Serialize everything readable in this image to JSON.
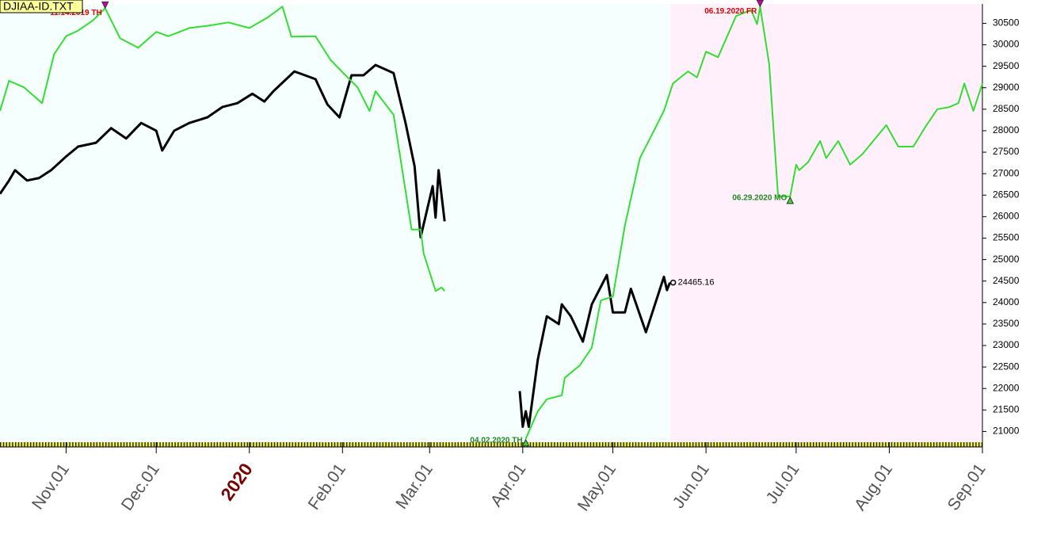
{
  "chart_data": {
    "type": "line",
    "title": "DJIAA-ID.TXT",
    "xlim": [
      "2019-10-10",
      "2020-09-01"
    ],
    "ylim": [
      20750,
      30950
    ],
    "yticks": [
      21000,
      21500,
      22000,
      22500,
      23000,
      23500,
      24000,
      24500,
      25000,
      25500,
      26000,
      26500,
      27000,
      27500,
      28000,
      28500,
      29000,
      29500,
      30000,
      30500
    ],
    "xticks": [
      {
        "value": "2019-11-01",
        "label": "Nov.01"
      },
      {
        "value": "2019-12-01",
        "label": "Dec.01"
      },
      {
        "value": "2020-01-01",
        "label": "2020"
      },
      {
        "value": "2020-02-01",
        "label": "Feb.01"
      },
      {
        "value": "2020-03-01",
        "label": "Mar.01"
      },
      {
        "value": "2020-04-01",
        "label": "Apr.01"
      },
      {
        "value": "2020-05-01",
        "label": "May.01"
      },
      {
        "value": "2020-06-01",
        "label": "Jun.01"
      },
      {
        "value": "2020-07-01",
        "label": "Jul.01"
      },
      {
        "value": "2020-08-01",
        "label": "Aug.01"
      },
      {
        "value": "2020-09-01",
        "label": "Sep.01"
      }
    ],
    "grid": false,
    "series": [
      {
        "color": "#000000",
        "x": [
          "2019-10-10",
          "2019-10-13",
          "2019-10-15",
          "2019-10-19",
          "2019-10-23",
          "2019-10-27",
          "2019-11-01",
          "2019-11-05",
          "2019-11-11",
          "2019-11-16",
          "2019-11-21",
          "2019-11-26",
          "2019-12-01",
          "2019-12-03",
          "2019-12-07",
          "2019-12-12",
          "2019-12-18",
          "2019-12-23",
          "2019-12-28",
          "2020-01-02",
          "2020-01-06",
          "2020-01-09",
          "2020-01-16",
          "2020-01-23",
          "2020-01-27",
          "2020-01-31",
          "2020-02-04",
          "2020-02-08",
          "2020-02-12",
          "2020-02-18",
          "2020-02-22",
          "2020-02-25",
          "2020-02-27",
          "2020-03-02",
          "2020-03-03",
          "2020-03-04",
          "2020-03-06",
          "2020-03-16",
          "2020-03-31",
          "2020-04-01",
          "2020-04-02",
          "2020-04-03",
          "2020-04-06",
          "2020-04-09",
          "2020-04-13",
          "2020-04-14",
          "2020-04-17",
          "2020-04-21",
          "2020-04-24",
          "2020-04-29",
          "2020-05-01",
          "2020-05-05",
          "2020-05-07",
          "2020-05-12",
          "2020-05-18",
          "2020-05-19",
          "2020-05-20"
        ],
        "values": [
          26530,
          26840,
          27080,
          26840,
          26900,
          27080,
          27400,
          27630,
          27720,
          28060,
          27820,
          28180,
          28000,
          27540,
          28000,
          28180,
          28310,
          28550,
          28640,
          28860,
          28680,
          28920,
          29380,
          29200,
          28610,
          28310,
          29290,
          29290,
          29530,
          29340,
          28180,
          27170,
          25520,
          26710,
          25980,
          27080,
          25890,
          null,
          21940,
          21110,
          21470,
          21110,
          22670,
          23680,
          23500,
          23960,
          23680,
          23090,
          23960,
          24640,
          23770,
          23770,
          24320,
          23310,
          24600,
          24290,
          24465.16
        ]
      },
      {
        "color": "#33dd33",
        "x": [
          "2019-10-10",
          "2019-10-13",
          "2019-10-18",
          "2019-10-24",
          "2019-10-28",
          "2019-11-01",
          "2019-11-05",
          "2019-11-10",
          "2019-11-14",
          "2019-11-19",
          "2019-11-25",
          "2019-12-01",
          "2019-12-05",
          "2019-12-12",
          "2019-12-18",
          "2019-12-25",
          "2020-01-01",
          "2020-01-07",
          "2020-01-12",
          "2020-01-15",
          "2020-01-23",
          "2020-01-28",
          "2020-02-02",
          "2020-02-06",
          "2020-02-10",
          "2020-02-12",
          "2020-02-18",
          "2020-02-24",
          "2020-02-27",
          "2020-02-28",
          "2020-03-03",
          "2020-03-05",
          "2020-03-06",
          "2020-03-16",
          "2020-04-02",
          "2020-04-06",
          "2020-04-09",
          "2020-04-14",
          "2020-04-15",
          "2020-04-20",
          "2020-04-24",
          "2020-04-27",
          "2020-05-01",
          "2020-05-05",
          "2020-05-10",
          "2020-05-14",
          "2020-05-18",
          "2020-05-21",
          "2020-05-26",
          "2020-05-29",
          "2020-06-01",
          "2020-06-05",
          "2020-06-11",
          "2020-06-16",
          "2020-06-18",
          "2020-06-19",
          "2020-06-22",
          "2020-06-25",
          "2020-06-29",
          "2020-07-01",
          "2020-07-02",
          "2020-07-05",
          "2020-07-09",
          "2020-07-11",
          "2020-07-15",
          "2020-07-19",
          "2020-07-23",
          "2020-07-31",
          "2020-08-04",
          "2020-08-09",
          "2020-08-13",
          "2020-08-17",
          "2020-08-21",
          "2020-08-24",
          "2020-08-26",
          "2020-08-29",
          "2020-09-01"
        ],
        "values": [
          28460,
          29160,
          29010,
          28640,
          29780,
          30200,
          30330,
          30570,
          30850,
          30150,
          29930,
          30300,
          30200,
          30390,
          30440,
          30520,
          30390,
          30630,
          30890,
          30190,
          30200,
          29650,
          29290,
          29010,
          28460,
          28920,
          28370,
          25700,
          25700,
          25150,
          24270,
          24350,
          24270,
          null,
          20830,
          21470,
          21750,
          21840,
          22250,
          22540,
          22950,
          24050,
          24140,
          25790,
          27360,
          27910,
          28460,
          29100,
          29380,
          29240,
          29840,
          29710,
          30670,
          30810,
          30480,
          30890,
          29560,
          26470,
          26470,
          27210,
          27080,
          27270,
          27760,
          27360,
          27760,
          27210,
          27450,
          28130,
          27630,
          27630,
          28090,
          28500,
          28550,
          28640,
          29100,
          28460,
          29100
        ]
      }
    ],
    "annotations": [
      {
        "text": "11.14.2019 TH",
        "x": "2019-11-14",
        "color": "#dd0000",
        "marker": "down"
      },
      {
        "text": "06.19.2020 FR",
        "x": "2020-06-19",
        "color": "#dd0000",
        "marker": "down"
      },
      {
        "text": "04.02.2020 TH",
        "x": "2020-04-02",
        "color": "#228822",
        "marker": "up"
      },
      {
        "text": "06.29.2020 MO",
        "x": "2020-06-29",
        "color": "#228822",
        "marker": "up"
      }
    ]
  }
}
